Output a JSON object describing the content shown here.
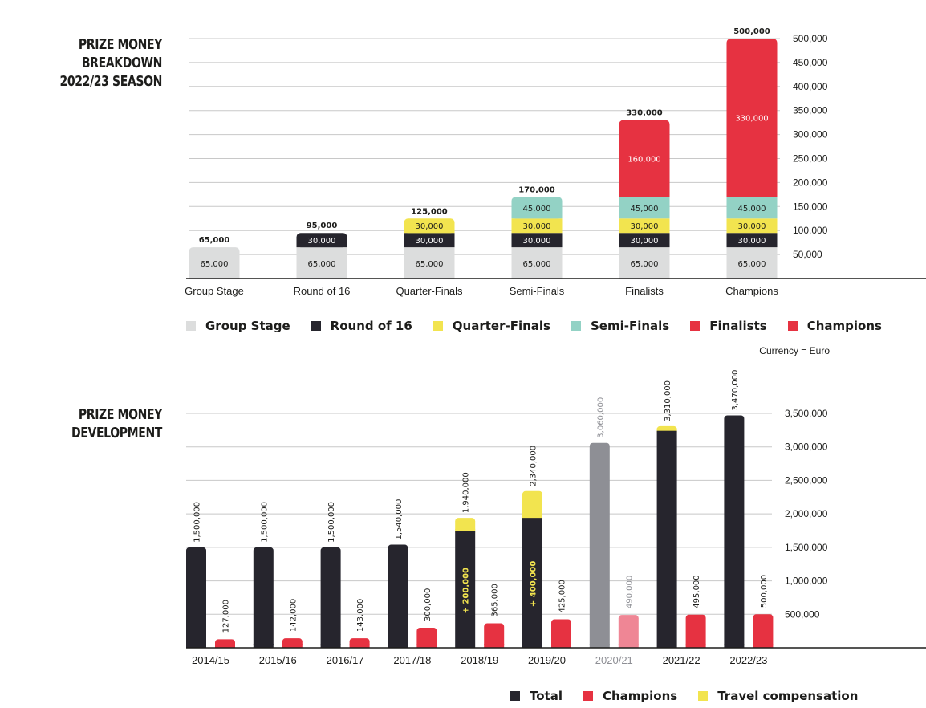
{
  "chart_data": [
    {
      "type": "bar",
      "stacked": true,
      "title": [
        "PRIZE MONEY",
        "BREAKDOWN",
        "2022/23 SEASON"
      ],
      "categories": [
        "Group Stage",
        "Round of 16",
        "Quarter-Finals",
        "Semi-Finals",
        "Finalists",
        "Champions"
      ],
      "series": [
        {
          "name": "Group Stage",
          "color": "#dcdddd",
          "values": [
            65000,
            65000,
            65000,
            65000,
            65000,
            65000
          ],
          "labels": [
            "65,000",
            "65,000",
            "65,000",
            "65,000",
            "65,000",
            "65,000"
          ]
        },
        {
          "name": "Round of 16",
          "color": "#26252d",
          "values": [
            0,
            30000,
            30000,
            30000,
            30000,
            30000
          ],
          "labels": [
            "",
            "30,000",
            "30,000",
            "30,000",
            "30,000",
            "30,000"
          ]
        },
        {
          "name": "Quarter-Finals",
          "color": "#f2e44f",
          "values": [
            0,
            0,
            30000,
            30000,
            30000,
            30000
          ],
          "labels": [
            "",
            "",
            "30,000",
            "30,000",
            "30,000",
            "30,000"
          ]
        },
        {
          "name": "Semi-Finals",
          "color": "#93d2c5",
          "values": [
            0,
            0,
            0,
            45000,
            45000,
            45000
          ],
          "labels": [
            "",
            "",
            "",
            "45,000",
            "45,000",
            "45,000"
          ]
        },
        {
          "name": "Finalists",
          "color": "#e63241",
          "values": [
            0,
            0,
            0,
            0,
            160000,
            0
          ],
          "labels": [
            "",
            "",
            "",
            "",
            "160,000",
            ""
          ]
        },
        {
          "name": "Champions",
          "color": "#e63241",
          "values": [
            0,
            0,
            0,
            0,
            0,
            330000
          ],
          "labels": [
            "",
            "",
            "",
            "",
            "",
            "330,000"
          ]
        }
      ],
      "totals": [
        "65,000",
        "95,000",
        "125,000",
        "170,000",
        "330,000",
        "500,000"
      ],
      "total_values": [
        65000,
        95000,
        125000,
        170000,
        330000,
        500000
      ],
      "ylim": [
        0,
        500000
      ],
      "yticks": [
        50000,
        100000,
        150000,
        200000,
        250000,
        300000,
        350000,
        400000,
        450000,
        500000
      ],
      "ytick_labels": [
        "50,000",
        "100,000",
        "150,000",
        "200,000",
        "250,000",
        "300,000",
        "350,000",
        "400,000",
        "450,000",
        "500,000"
      ],
      "y_axis_side": "right",
      "grid": true,
      "note": "Currency = Euro"
    },
    {
      "type": "bar",
      "title": [
        "PRIZE MONEY",
        "DEVELOPMENT"
      ],
      "categories": [
        "2014/15",
        "2015/16",
        "2016/17",
        "2017/18",
        "2018/19",
        "2019/20",
        "2020/21",
        "2021/22",
        "2022/23"
      ],
      "series": [
        {
          "name": "Total",
          "color": "#26252d",
          "values": [
            1500000,
            1500000,
            1500000,
            1540000,
            1740000,
            1940000,
            3060000,
            3240000,
            3470000
          ]
        },
        {
          "name": "Travel compensation",
          "color": "#f2e44f",
          "values": [
            0,
            0,
            0,
            0,
            200000,
            400000,
            0,
            70000,
            0
          ]
        },
        {
          "name": "Champions",
          "color": "#e63241",
          "values": [
            127000,
            142000,
            143000,
            300000,
            365000,
            425000,
            490000,
            495000,
            500000
          ]
        }
      ],
      "total_labels": [
        "1,500,000",
        "1,500,000",
        "1,500,000",
        "1,540,000",
        "1,940,000",
        "2,340,000",
        "3,060,000",
        "3,310,000",
        "3,470,000"
      ],
      "total_values": [
        1500000,
        1500000,
        1500000,
        1540000,
        1940000,
        2340000,
        3060000,
        3310000,
        3470000
      ],
      "champion_labels": [
        "127,000",
        "142,000",
        "143,000",
        "300,000",
        "365,000",
        "425,000",
        "490,000",
        "495,000",
        "500,000"
      ],
      "travel_labels": [
        "",
        "",
        "",
        "",
        "+ 200,000",
        "+ 400,000",
        "",
        "",
        ""
      ],
      "greyed_category": "2020/21",
      "greyed_colors": {
        "total": "#8e8f95",
        "champions": "#ef8695",
        "label": "#8e8f95"
      },
      "ylim": [
        0,
        3500000
      ],
      "yticks": [
        500000,
        1000000,
        1500000,
        2000000,
        2500000,
        3000000,
        3500000
      ],
      "ytick_labels": [
        "500,000",
        "1,000,000",
        "1,500,000",
        "2,000,000",
        "2,500,000",
        "3,000,000",
        "3,500,000"
      ],
      "y_axis_side": "right",
      "grid": true
    }
  ],
  "legend1": {
    "items": [
      {
        "label": "Group Stage",
        "color": "#dcdddd"
      },
      {
        "label": "Round of 16",
        "color": "#26252d"
      },
      {
        "label": "Quarter-Finals",
        "color": "#f2e44f"
      },
      {
        "label": "Semi-Finals",
        "color": "#93d2c5"
      },
      {
        "label": "Finalists",
        "color": "#e63241"
      },
      {
        "label": "Champions",
        "color": "#e63241"
      }
    ]
  },
  "legend2": {
    "items": [
      {
        "label": "Total",
        "color": "#26252d"
      },
      {
        "label": "Champions",
        "color": "#e63241"
      },
      {
        "label": "Travel compensation",
        "color": "#f2e44f"
      }
    ]
  },
  "currency_note": "Currency = Euro"
}
